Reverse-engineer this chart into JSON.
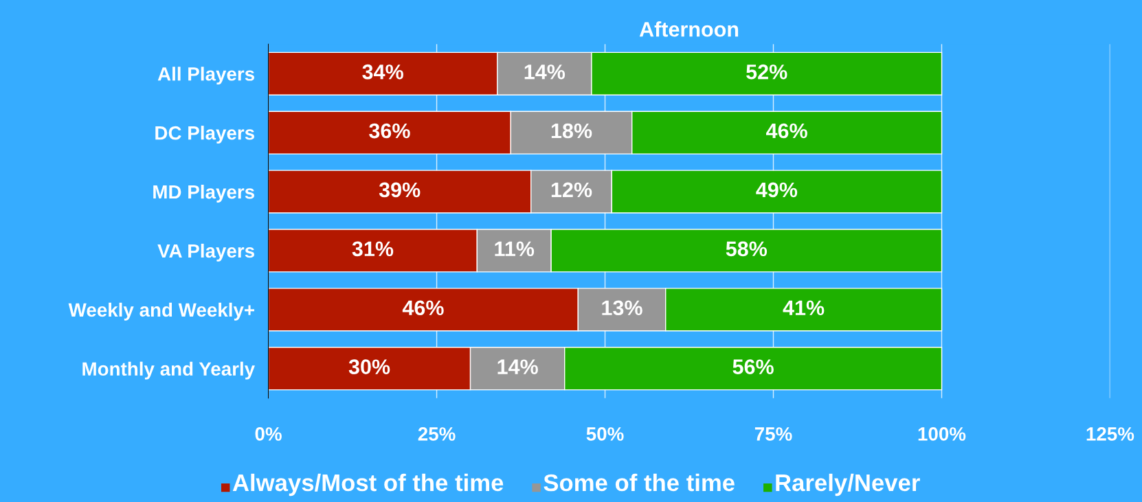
{
  "chart_data": {
    "type": "bar",
    "orientation": "horizontal",
    "stacked": true,
    "title": "Afternoon",
    "categories": [
      "All Players",
      "DC Players",
      "MD Players",
      "VA Players",
      "Weekly and Weekly+",
      "Monthly and Yearly"
    ],
    "series": [
      {
        "name": "Always/Most of the time",
        "color": "#b31800",
        "values": [
          34,
          36,
          39,
          31,
          46,
          30
        ],
        "value_labels": [
          "34%",
          "36%",
          "39%",
          "31%",
          "46%",
          "30%"
        ]
      },
      {
        "name": "Some of the time",
        "color": "#969696",
        "values": [
          14,
          18,
          12,
          11,
          13,
          14
        ],
        "value_labels": [
          "14%",
          "18%",
          "12%",
          "11%",
          "13%",
          "14%"
        ]
      },
      {
        "name": "Rarely/Never",
        "color": "#1eb000",
        "values": [
          52,
          46,
          49,
          58,
          41,
          56
        ],
        "value_labels": [
          "52%",
          "46%",
          "49%",
          "58%",
          "41%",
          "56%"
        ]
      }
    ],
    "xlim": [
      0,
      125
    ],
    "xticks": [
      {
        "value": 0,
        "label": "0%"
      },
      {
        "value": 25,
        "label": "25%"
      },
      {
        "value": 50,
        "label": "50%"
      },
      {
        "value": 75,
        "label": "75%"
      },
      {
        "value": 100,
        "label": "100%"
      },
      {
        "value": 125,
        "label": "125%"
      }
    ],
    "grid": "x",
    "legend": "bottom"
  }
}
